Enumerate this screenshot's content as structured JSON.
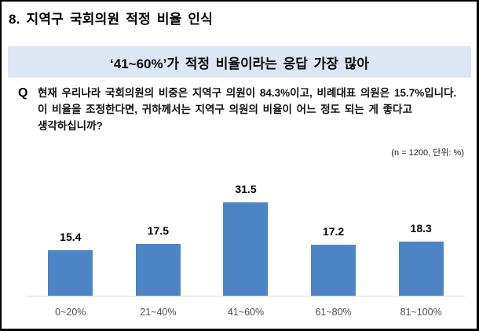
{
  "page": {
    "title": "8. 지역구 국회의원 적정 비율 인식",
    "headline": "‘41~60%’가 적정 비율이라는 응답 가장 많아",
    "question_label": "Q",
    "question_lines": [
      "현재 우리나라 국회의원의 비중은 지역구 의원이 84.3%이고, 비례대표 의원은 15.7%입니다.",
      "이 비율을 조정한다면, 귀하께서는 지역구 의원의 비율이 어느 정도 되는 게 좋다고",
      "생각하십니까?"
    ],
    "note": "(n = 1200, 단위: %)"
  },
  "colors": {
    "bar": "#4d84c6",
    "banner_bg": "#dde7f3",
    "axis_line": "#d9d9d9"
  },
  "chart_data": {
    "type": "bar",
    "title": "지역구 국회의원 적정 비율 인식",
    "categories": [
      "0~20%",
      "21~40%",
      "41~60%",
      "61~80%",
      "81~100%"
    ],
    "values": [
      15.4,
      17.5,
      31.5,
      17.2,
      18.3
    ],
    "xlabel": "",
    "ylabel": "",
    "unit": "%",
    "n": 1200,
    "ylim": [
      0,
      35
    ],
    "grid": false,
    "legend": false,
    "value_labels": true
  }
}
